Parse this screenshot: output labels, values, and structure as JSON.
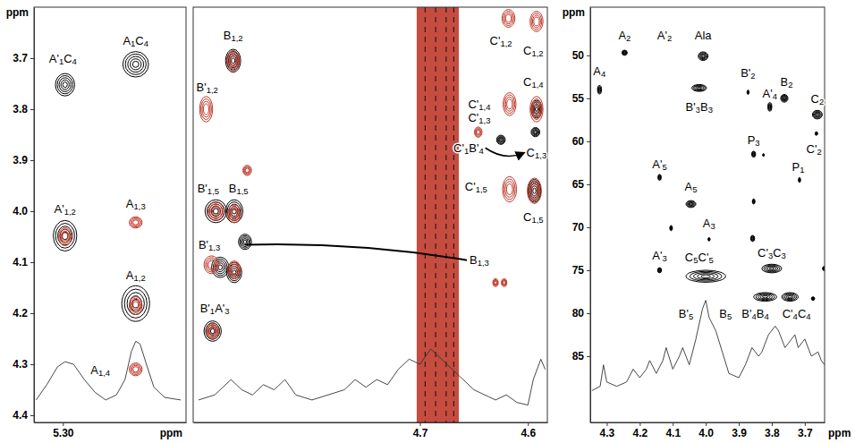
{
  "chart_data": [
    {
      "type": "contour",
      "xlim": [
        5.327,
        5.185
      ],
      "ylim": [
        3.6,
        4.414
      ],
      "xticks": [
        {
          "value": 5.3,
          "label": "5.30"
        }
      ],
      "yticks": [
        3.7,
        3.8,
        3.9,
        {
          "value": 4,
          "label": "4.0"
        },
        4.1,
        4.2,
        4.3,
        4.4
      ],
      "x_label": "ppm",
      "y_label": "ppm",
      "series": [
        {
          "type": "contour",
          "color": "#000000",
          "x": [
            5.298,
            5.232,
            5.298,
            5.232
          ],
          "values": [
            3.752,
            3.712,
            4.048,
            4.181
          ],
          "x_width": [
            0.018,
            0.024,
            0.022,
            0.026
          ],
          "y_width": [
            0.044,
            0.05,
            0.06,
            0.07
          ]
        },
        {
          "type": "contour",
          "color": "#c0392b",
          "x": [
            5.232,
            5.298,
            5.232,
            5.232
          ],
          "values": [
            4.022,
            4.05,
            4.185,
            4.31
          ],
          "x_width": [
            0.012,
            0.012,
            0.012,
            0.012
          ],
          "y_width": [
            0.022,
            0.035,
            0.035,
            0.025
          ]
        },
        {
          "type": "line",
          "color": "#333333",
          "x": [
            5.325,
            5.315,
            5.305,
            5.298,
            5.29,
            5.28,
            5.27,
            5.26,
            5.25,
            5.242,
            5.236,
            5.232,
            5.228,
            5.222,
            5.215,
            5.205,
            5.19
          ],
          "values": [
            4.37,
            4.34,
            4.305,
            4.295,
            4.3,
            4.33,
            4.355,
            4.37,
            4.36,
            4.33,
            4.275,
            4.255,
            4.26,
            4.3,
            4.345,
            4.365,
            4.37
          ]
        }
      ],
      "annotations": [
        {
          "text": "A'1C4",
          "x": 5.3,
          "y": 3.7
        },
        {
          "text": "A1C4",
          "x": 5.232,
          "y": 3.665
        },
        {
          "text": "A'1,2",
          "x": 5.298,
          "y": 3.995
        },
        {
          "text": "A1,3",
          "x": 5.232,
          "y": 3.985
        },
        {
          "text": "A1,2",
          "x": 5.232,
          "y": 4.125
        },
        {
          "text": "A1,4",
          "x": 5.265,
          "y": 4.31
        }
      ]
    },
    {
      "type": "contour",
      "xlim": [
        4.91,
        4.582
      ],
      "ylim": [
        3.6,
        4.414
      ],
      "xticks": [
        4.7,
        4.6
      ],
      "tick_labels": "x",
      "series": [
        {
          "type": "band",
          "color": "#c0392b",
          "x": [
            4.703,
            4.664
          ]
        },
        {
          "type": "contour",
          "color": "#000000",
          "x": [
            4.873,
            4.889,
            4.872,
            4.885,
            4.872,
            4.862,
            4.892,
            4.593,
            4.625,
            4.592,
            4.594
          ],
          "values": [
            3.705,
            4.0,
            4.0,
            4.11,
            4.12,
            4.06,
            4.235,
            3.845,
            3.86,
            3.8,
            3.96
          ],
          "x_width": [
            0.014,
            0.02,
            0.016,
            0.016,
            0.014,
            0.012,
            0.016,
            0.008,
            0.008,
            0.01,
            0.012
          ],
          "y_width": [
            0.045,
            0.045,
            0.045,
            0.04,
            0.04,
            0.03,
            0.04,
            0.018,
            0.018,
            0.035,
            0.045
          ]
        },
        {
          "type": "contour",
          "color": "#c0392b",
          "x": [
            4.873,
            4.898,
            4.889,
            4.872,
            4.893,
            4.872,
            4.892,
            4.86,
            4.618,
            4.592,
            4.617,
            4.592,
            4.646,
            4.617,
            4.594,
            4.63,
            4.622
          ],
          "values": [
            3.705,
            3.8,
            4.0,
            4.005,
            4.105,
            4.115,
            4.235,
            3.92,
            3.622,
            3.628,
            3.79,
            3.8,
            3.845,
            3.957,
            3.96,
            4.14,
            4.14
          ],
          "x_width": [
            0.012,
            0.012,
            0.015,
            0.012,
            0.014,
            0.012,
            0.012,
            0.008,
            0.012,
            0.012,
            0.012,
            0.012,
            0.007,
            0.013,
            0.013,
            0.005,
            0.005
          ],
          "y_width": [
            0.04,
            0.05,
            0.035,
            0.035,
            0.035,
            0.035,
            0.03,
            0.02,
            0.035,
            0.04,
            0.045,
            0.05,
            0.02,
            0.05,
            0.05,
            0.015,
            0.015
          ]
        },
        {
          "type": "line",
          "color": "#333333",
          "x": [
            4.905,
            4.89,
            4.875,
            4.865,
            4.855,
            4.845,
            4.835,
            4.825,
            4.815,
            4.8,
            4.785,
            4.77,
            4.76,
            4.75,
            4.74,
            4.73,
            4.72,
            4.71,
            4.7,
            4.69,
            4.68,
            4.67,
            4.66,
            4.65,
            4.64,
            4.63,
            4.62,
            4.61,
            4.6,
            4.595,
            4.588,
            4.584
          ],
          "values": [
            4.37,
            4.36,
            4.33,
            4.35,
            4.36,
            4.34,
            4.35,
            4.33,
            4.36,
            4.37,
            4.36,
            4.35,
            4.33,
            4.345,
            4.33,
            4.34,
            4.31,
            4.29,
            4.3,
            4.27,
            4.29,
            4.31,
            4.33,
            4.35,
            4.36,
            4.37,
            4.36,
            4.375,
            4.38,
            4.33,
            4.29,
            4.31
          ]
        }
      ],
      "annotations": [
        {
          "text": "B1,2",
          "x": 4.873,
          "y": 3.655
        },
        {
          "text": "B'1,2",
          "x": 4.897,
          "y": 3.757
        },
        {
          "text": "B'1,5",
          "x": 4.896,
          "y": 3.955
        },
        {
          "text": "B1,5",
          "x": 4.868,
          "y": 3.955
        },
        {
          "text": "B'1,3",
          "x": 4.895,
          "y": 4.065
        },
        {
          "text": "B1,3",
          "x": 4.645,
          "y": 4.095
        },
        {
          "text": "B'1A'3",
          "x": 4.89,
          "y": 4.19
        },
        {
          "text": "C'1,2",
          "x": 4.625,
          "y": 3.665
        },
        {
          "text": "C1,2",
          "x": 4.595,
          "y": 3.685
        },
        {
          "text": "C'1,4",
          "x": 4.645,
          "y": 3.79
        },
        {
          "text": "C1,4",
          "x": 4.595,
          "y": 3.745
        },
        {
          "text": "C'1,3",
          "x": 4.645,
          "y": 3.815
        },
        {
          "text": "C'1B'4",
          "x": 4.655,
          "y": 3.875
        },
        {
          "text": "C1,3",
          "x": 4.592,
          "y": 3.885
        },
        {
          "text": "C'1,5",
          "x": 4.648,
          "y": 3.95
        },
        {
          "text": "C1,5",
          "x": 4.595,
          "y": 4.01
        }
      ]
    },
    {
      "type": "contour",
      "xlim": [
        4.35,
        3.64
      ],
      "ylim": [
        44.4,
        92.7
      ],
      "xticks": [
        4.3,
        4.2,
        4.1,
        {
          "value": 4,
          "label": "4.0"
        },
        3.9,
        3.8,
        3.7
      ],
      "yticks": [
        50,
        55,
        60,
        65,
        70,
        75,
        80,
        85
      ],
      "x_label": "ppm",
      "y_label": "ppm",
      "series": [
        {
          "type": "contour",
          "color": "#000000",
          "x": [
            4.322,
            4.246,
            4.008,
            4.02,
            3.872,
            3.806,
            3.762,
            3.662,
            3.665,
            3.855,
            3.825,
            3.716,
            4.14,
            4.045,
            4.105,
            3.855,
            3.858,
            3.99,
            4.14,
            4.0,
            3.8,
            3.82,
            3.745,
            3.675,
            3.642
          ],
          "values": [
            54.0,
            49.7,
            50.1,
            53.8,
            54.3,
            56.0,
            55.0,
            56.9,
            59.1,
            61.5,
            61.6,
            64.5,
            64.2,
            67.3,
            70.1,
            67.0,
            71.3,
            71.4,
            75.0,
            75.7,
            74.8,
            78.1,
            78.1,
            78.3,
            74.8
          ],
          "x_width": [
            0.012,
            0.016,
            0.03,
            0.045,
            0.006,
            0.012,
            0.022,
            0.03,
            0.008,
            0.012,
            0.005,
            0.006,
            0.01,
            0.03,
            0.008,
            0.008,
            0.012,
            0.006,
            0.012,
            0.12,
            0.06,
            0.07,
            0.05,
            0.01,
            0.008
          ],
          "y_width": [
            1.0,
            0.6,
            1.0,
            0.8,
            0.5,
            1.0,
            0.9,
            1.0,
            0.4,
            0.7,
            0.3,
            0.6,
            0.7,
            0.8,
            0.6,
            0.6,
            0.7,
            0.4,
            0.6,
            1.4,
            1.0,
            1.0,
            1.0,
            0.4,
            0.5
          ]
        },
        {
          "type": "line",
          "color": "#333333",
          "x": [
            4.345,
            4.32,
            4.31,
            4.3,
            4.27,
            4.24,
            4.22,
            4.2,
            4.18,
            4.17,
            4.15,
            4.13,
            4.12,
            4.1,
            4.08,
            4.07,
            4.05,
            4.03,
            4.01,
            4.0,
            3.99,
            3.97,
            3.95,
            3.93,
            3.9,
            3.88,
            3.86,
            3.84,
            3.83,
            3.81,
            3.79,
            3.78,
            3.76,
            3.75,
            3.73,
            3.72,
            3.7,
            3.68,
            3.66,
            3.65,
            3.64
          ],
          "values": [
            89,
            88.5,
            86,
            88,
            88.5,
            88,
            86.5,
            87.5,
            86.5,
            85.5,
            87,
            85.5,
            84,
            86.5,
            85,
            84,
            86,
            83,
            79.5,
            78.5,
            80.5,
            82,
            84.5,
            87,
            87.5,
            86,
            84,
            85,
            84.5,
            82.5,
            81.5,
            82,
            84,
            83.5,
            82.5,
            84,
            83,
            85,
            84.5,
            85.5,
            86
          ]
        }
      ],
      "annotations": [
        {
          "text": "A4",
          "x": 4.322,
          "y": 51.8
        },
        {
          "text": "A2",
          "x": 4.246,
          "y": 47.6
        },
        {
          "text": "A'2",
          "x": 4.125,
          "y": 47.6
        },
        {
          "text": "Ala",
          "x": 4.008,
          "y": 47.6
        },
        {
          "text": "B'3B3",
          "x": 4.02,
          "y": 56.0
        },
        {
          "text": "B'2",
          "x": 3.872,
          "y": 52.0
        },
        {
          "text": "A'4",
          "x": 3.806,
          "y": 54.4
        },
        {
          "text": "B2",
          "x": 3.755,
          "y": 53.0
        },
        {
          "text": "C2",
          "x": 3.662,
          "y": 55.0
        },
        {
          "text": "C'2",
          "x": 3.672,
          "y": 60.8
        },
        {
          "text": "P3",
          "x": 3.855,
          "y": 59.8
        },
        {
          "text": "P1",
          "x": 3.72,
          "y": 62.9
        },
        {
          "text": "A'5",
          "x": 4.14,
          "y": 62.6
        },
        {
          "text": "A5",
          "x": 4.045,
          "y": 65.2
        },
        {
          "text": "A3",
          "x": 3.99,
          "y": 69.5
        },
        {
          "text": "A'3",
          "x": 4.14,
          "y": 73.2
        },
        {
          "text": "C5C'5",
          "x": 4.02,
          "y": 73.4
        },
        {
          "text": "C'3C3",
          "x": 3.8,
          "y": 72.9
        },
        {
          "text": "B'5",
          "x": 4.06,
          "y": 80.0
        },
        {
          "text": "B5",
          "x": 3.94,
          "y": 80.0
        },
        {
          "text": "B'4B4",
          "x": 3.85,
          "y": 80.0
        },
        {
          "text": "C'4C4",
          "x": 3.725,
          "y": 80.0
        }
      ]
    }
  ]
}
